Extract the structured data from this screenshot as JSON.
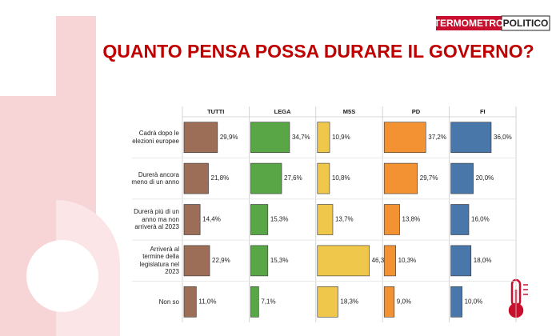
{
  "logo": {
    "part1": "TERMOMETRO",
    "part2": "POLITICO"
  },
  "chart_data": {
    "type": "bar",
    "orientation": "horizontal",
    "title": "QUANTO PENSA POSSA DURARE IL GOVERNO?",
    "categories": [
      "Cadrà dopo le elezioni europee",
      "Durerà ancora meno di un anno",
      "Durerà più di un anno ma non arriverà al 2023",
      "Arriverà al termine della legislatura nel 2023",
      "Non so"
    ],
    "xlim": [
      0,
      50
    ],
    "series": [
      {
        "name": "TUTTI",
        "color": "#9c6e57",
        "values": [
          29.9,
          21.8,
          14.4,
          22.9,
          11.0
        ],
        "value_labels": [
          "29,9%",
          "21,8%",
          "14,4%",
          "22,9%",
          "11,0%"
        ]
      },
      {
        "name": "LEGA",
        "color": "#58a646",
        "values": [
          34.7,
          27.6,
          15.3,
          15.3,
          7.1
        ],
        "value_labels": [
          "34,7%",
          "27,6%",
          "15,3%",
          "15,3%",
          "7,1%"
        ]
      },
      {
        "name": "M5S",
        "color": "#efc84b",
        "values": [
          10.9,
          10.8,
          13.7,
          46.3,
          18.3
        ],
        "value_labels": [
          "10,9%",
          "10,8%",
          "13,7%",
          "46,3%",
          "18,3%"
        ]
      },
      {
        "name": "PD",
        "color": "#f29233",
        "values": [
          37.2,
          29.7,
          13.8,
          10.3,
          9.0
        ],
        "value_labels": [
          "37,2%",
          "29,7%",
          "13,8%",
          "10,3%",
          "9,0%"
        ]
      },
      {
        "name": "FI",
        "color": "#4a77a9",
        "values": [
          36.0,
          20.0,
          16.0,
          18.0,
          10.0
        ],
        "value_labels": [
          "36,0%",
          "20,0%",
          "16,0%",
          "18,0%",
          "10,0%"
        ]
      }
    ]
  }
}
